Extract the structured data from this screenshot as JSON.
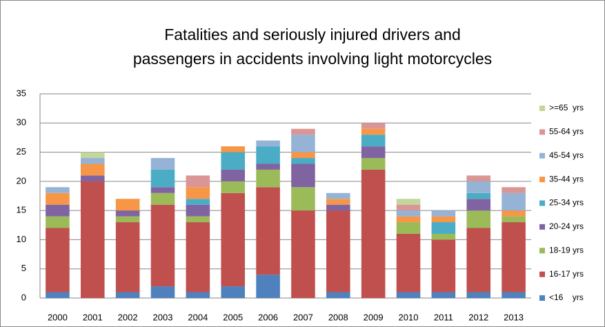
{
  "chart_data": {
    "type": "stacked_bar",
    "title": [
      "Fatalities and seriously injured drivers and",
      "passengers in accidents involving light motorcycles"
    ],
    "categories": [
      "2000",
      "2001",
      "2002",
      "2003",
      "2004",
      "2005",
      "2006",
      "2007",
      "2008",
      "2009",
      "2010",
      "2011",
      "2012",
      "2013"
    ],
    "series": [
      {
        "name": "<16    yrs",
        "color": "#4f81bd",
        "values": [
          1,
          0,
          1,
          2,
          1,
          2,
          4,
          0,
          1,
          0,
          1,
          1,
          1,
          1
        ]
      },
      {
        "name": "16-17 yrs",
        "color": "#c0504d",
        "values": [
          11,
          20,
          12,
          14,
          12,
          16,
          15,
          15,
          14,
          22,
          10,
          9,
          11,
          12
        ]
      },
      {
        "name": "18-19 yrs",
        "color": "#9bbb59",
        "values": [
          2,
          0,
          1,
          2,
          1,
          2,
          3,
          4,
          0,
          2,
          2,
          1,
          3,
          1
        ]
      },
      {
        "name": "20-24 yrs",
        "color": "#8064a2",
        "values": [
          2,
          1,
          1,
          1,
          2,
          2,
          1,
          4,
          1,
          2,
          0,
          0,
          2,
          0
        ]
      },
      {
        "name": "25-34 yrs",
        "color": "#4bacc6",
        "values": [
          0,
          0,
          0,
          3,
          1,
          3,
          3,
          1,
          0,
          2,
          0,
          2,
          1,
          0
        ]
      },
      {
        "name": "35-44 yrs",
        "color": "#f79646",
        "values": [
          2,
          2,
          2,
          0,
          2,
          1,
          0,
          1,
          1,
          1,
          1,
          1,
          0,
          1
        ]
      },
      {
        "name": "45-54 yrs",
        "color": "#95b3d7",
        "values": [
          1,
          1,
          0,
          2,
          0,
          0,
          1,
          3,
          1,
          0,
          1,
          1,
          2,
          3
        ]
      },
      {
        "name": "55-64 yrs",
        "color": "#d99694",
        "values": [
          0,
          0,
          0,
          0,
          2,
          0,
          0,
          1,
          0,
          1,
          1,
          0,
          1,
          1
        ]
      },
      {
        "name": ">=65  yrs",
        "color": "#c3d69b",
        "values": [
          0,
          1,
          0,
          0,
          0,
          0,
          0,
          0,
          0,
          0,
          1,
          0,
          0,
          0
        ]
      }
    ],
    "ylim": [
      0,
      35
    ],
    "yticks": [
      0,
      5,
      10,
      15,
      20,
      25,
      30,
      35
    ],
    "grid": true
  }
}
